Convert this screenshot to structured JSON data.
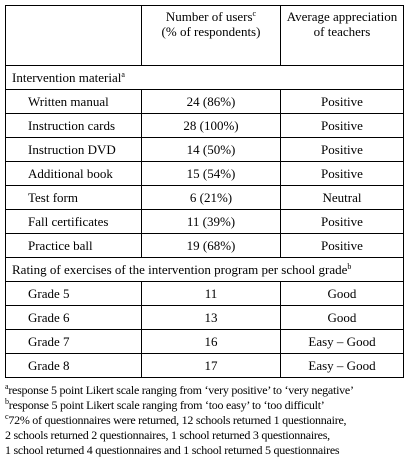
{
  "table": {
    "header": {
      "users": "Number of users",
      "users_sup": "c",
      "users_line2": "(% of respondents)",
      "appreciation": "Average appreciation of teachers"
    },
    "sections": [
      {
        "title": "Intervention material",
        "sup": "a",
        "rows": [
          [
            "Written manual",
            "24 (86%)",
            "Positive"
          ],
          [
            "Instruction cards",
            "28 (100%)",
            "Positive"
          ],
          [
            "Instruction DVD",
            "14 (50%)",
            "Positive"
          ],
          [
            "Additional book",
            "15 (54%)",
            "Positive"
          ],
          [
            "Test form",
            "6 (21%)",
            "Neutral"
          ],
          [
            "Fall certificates",
            "11 (39%)",
            "Positive"
          ],
          [
            "Practice ball",
            "19 (68%)",
            "Positive"
          ]
        ]
      },
      {
        "title": "Rating of exercises of the intervention program per school grade",
        "sup": "b",
        "rows": [
          [
            "Grade 5",
            "11",
            "Good"
          ],
          [
            "Grade 6",
            "13",
            "Good"
          ],
          [
            "Grade 7",
            "16",
            "Easy – Good"
          ],
          [
            "Grade 8",
            "17",
            "Easy – Good"
          ]
        ]
      }
    ]
  },
  "footnotes": [
    {
      "mark": "a",
      "lines": [
        "response 5 point Likert scale ranging from ‘very positive’ to ‘very negative’"
      ]
    },
    {
      "mark": "b",
      "lines": [
        "response 5 point Likert scale ranging from ‘too easy’ to ‘too difficult’"
      ]
    },
    {
      "mark": "c",
      "lines": [
        "72% of questionnaires were returned, 12 schools returned 1 questionnaire,",
        "2 schools returned 2 questionnaires, 1 school returned 3 questionnaires,",
        "1 school returned 4 questionnaires and 1 school returned 5 questionnaires"
      ]
    }
  ]
}
